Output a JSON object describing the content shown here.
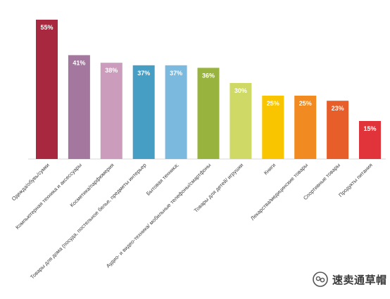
{
  "chart_data": {
    "type": "bar",
    "categories": [
      "Одежда/обувь/сумки",
      "Компьютерная техника и аксессуары",
      "Косметика/парфюмерия",
      "Товары для дома (посуда, постельное белье, предметы интерьер",
      "Бытовая техника;",
      "Аудио- и видео-техника/ мобильные телефоны/смартфоны",
      "Товары для детей/ игрушки",
      "Книги",
      "Лекарства/медицинские товары",
      "Спортивные товары",
      "Продукты питания"
    ],
    "values": [
      55,
      41,
      38,
      37,
      37,
      36,
      30,
      25,
      25,
      23,
      15
    ],
    "value_labels": [
      "55%",
      "41%",
      "38%",
      "37%",
      "37%",
      "36%",
      "30%",
      "25%",
      "25%",
      "23%",
      "15%"
    ],
    "colors": [
      "#A8283F",
      "#A3779E",
      "#CB9CBC",
      "#479EC5",
      "#7BB9DE",
      "#98B33E",
      "#CED966",
      "#F8C500",
      "#F08A21",
      "#E75E2B",
      "#E1343A"
    ],
    "ylim": [
      0,
      55
    ],
    "grid": false,
    "legend": false,
    "title": "",
    "xlabel": "",
    "ylabel": ""
  },
  "watermark": {
    "text": "速卖通草帽",
    "icon": "wechat-icon"
  }
}
